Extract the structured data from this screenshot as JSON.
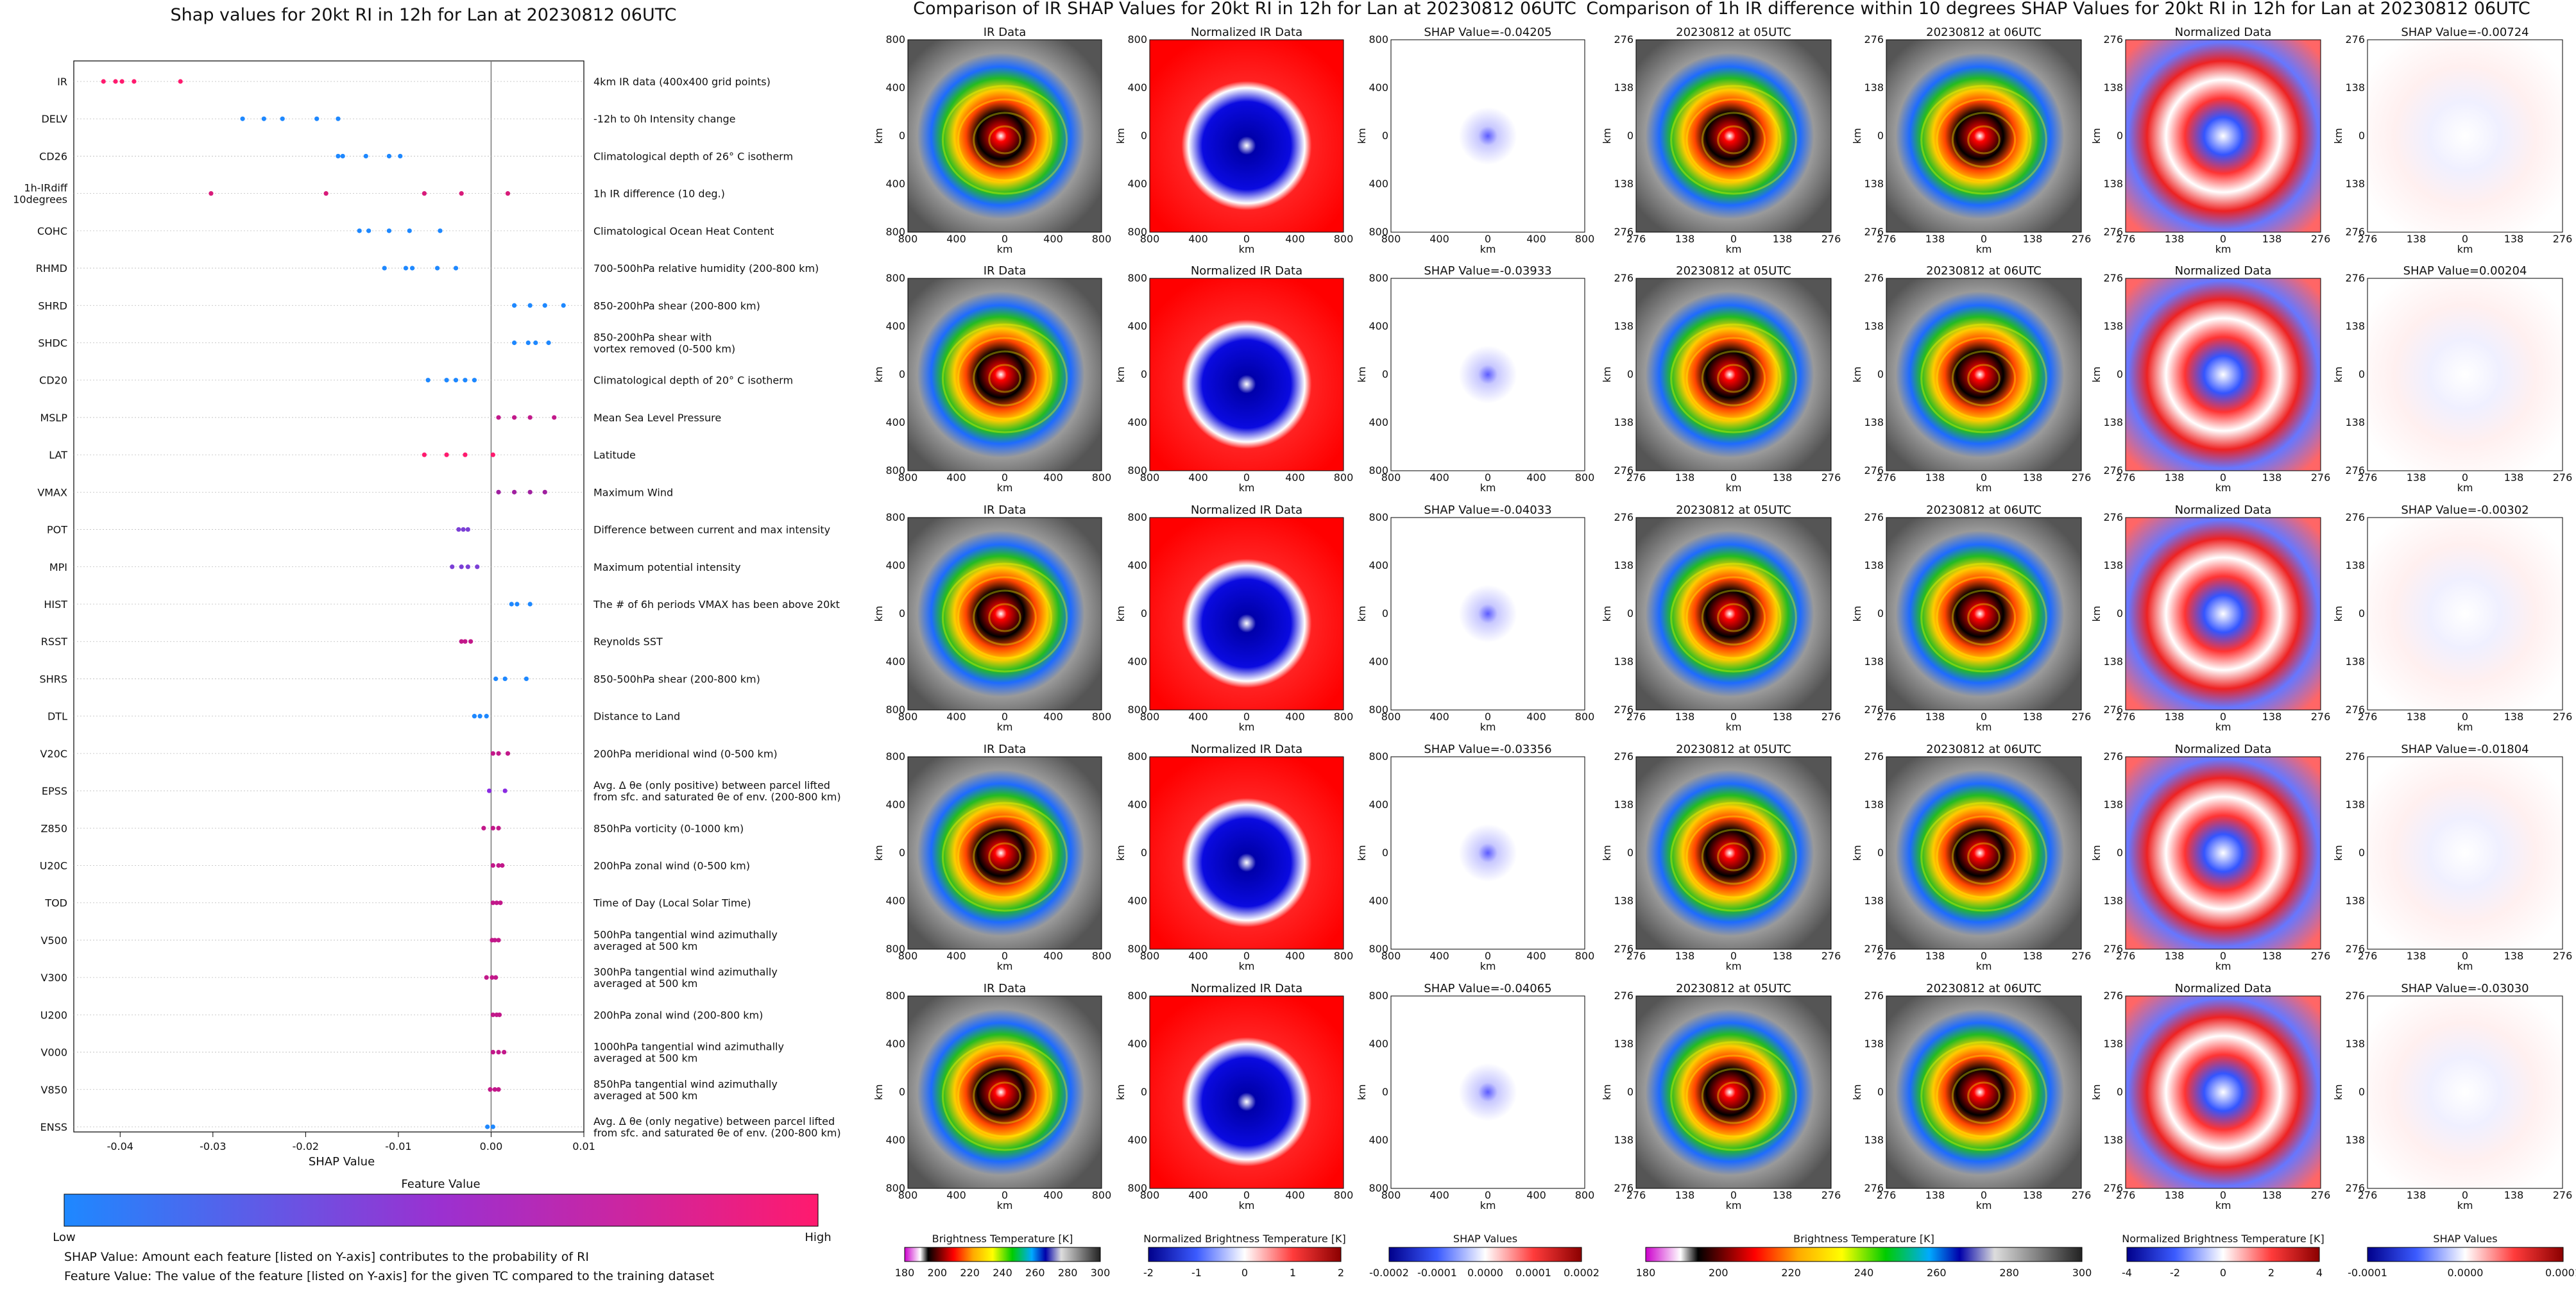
{
  "left_title": "Shap values for 20kt RI in 12h for Lan at 20230812 06UTC",
  "middle_title": "Comparison of IR SHAP Values for 20kt RI in 12h for Lan at 20230812 06UTC",
  "right_title": "Comparison of 1h IR difference within 10 degrees SHAP Values for 20kt RI in 12h for Lan at 20230812 06UTC",
  "colorbar": {
    "title": "Feature Value",
    "low": "Low",
    "high": "High"
  },
  "notes": [
    "SHAP Value: Amount each feature [listed on Y-axis] contributes to the probability of RI",
    "Feature Value: The value of the feature [listed on Y-axis] for the given TC compared to the training dataset"
  ],
  "colors": {
    "low": "#1e88ff",
    "high": "#ff1a6e",
    "mid": "#8a2be2"
  },
  "chart_data": [
    {
      "type": "scatter",
      "title": "Shap values for 20kt RI in 12h for Lan at 20230812 06UTC",
      "xlabel": "SHAP Value",
      "ylabel": "",
      "xlim": [
        -0.045,
        0.01
      ],
      "xticks": [
        "-0.04",
        "-0.03",
        "-0.02",
        "-0.01",
        "0.00",
        "0.01"
      ],
      "grid": false,
      "features": [
        {
          "name": "IR",
          "desc": "4km IR data (400x400 grid points)",
          "points": [
            -0.0418,
            -0.0405,
            -0.0398,
            -0.0385,
            -0.0335
          ],
          "color": "#ff1a6e"
        },
        {
          "name": "DELV",
          "desc": "-12h to 0h Intensity change",
          "points": [
            -0.0268,
            -0.0245,
            -0.0225,
            -0.0188,
            -0.0165
          ],
          "color": "#1e88ff"
        },
        {
          "name": "CD26",
          "desc": "Climatological depth of 26° C isotherm",
          "points": [
            -0.0165,
            -0.016,
            -0.0135,
            -0.011,
            -0.0098
          ],
          "color": "#1e88ff"
        },
        {
          "name": "1h-IRdiff\n10degrees",
          "desc": "1h IR difference (10 deg.)",
          "points": [
            -0.0302,
            -0.0178,
            -0.0072,
            -0.0032,
            0.0018
          ],
          "color": "#d81b7a"
        },
        {
          "name": "COHC",
          "desc": "Climatological Ocean Heat Content",
          "points": [
            -0.0142,
            -0.0132,
            -0.011,
            -0.0088,
            -0.0055
          ],
          "color": "#1e88ff"
        },
        {
          "name": "RHMD",
          "desc": "700-500hPa relative humidity (200-800 km)",
          "points": [
            -0.0115,
            -0.0092,
            -0.0085,
            -0.0058,
            -0.0038
          ],
          "color": "#1e88ff"
        },
        {
          "name": "SHRD",
          "desc": "850-200hPa shear (200-800 km)",
          "points": [
            0.0025,
            0.0042,
            0.0058,
            0.0078
          ],
          "color": "#1e88ff"
        },
        {
          "name": "SHDC",
          "desc": "850-200hPa shear with\nvortex removed (0-500 km)",
          "points": [
            0.0025,
            0.004,
            0.0048,
            0.0062
          ],
          "color": "#1e88ff"
        },
        {
          "name": "CD20",
          "desc": "Climatological depth of 20° C isotherm",
          "points": [
            -0.0068,
            -0.0048,
            -0.0038,
            -0.0028,
            -0.0018
          ],
          "color": "#1e88ff"
        },
        {
          "name": "MSLP",
          "desc": "Mean Sea Level Pressure",
          "points": [
            0.0008,
            0.0025,
            0.0042,
            0.0068
          ],
          "color": "#c2188a"
        },
        {
          "name": "LAT",
          "desc": "Latitude",
          "points": [
            -0.0072,
            -0.0048,
            -0.0028,
            0.0002
          ],
          "color": "#ff1a6e"
        },
        {
          "name": "VMAX",
          "desc": "Maximum Wind",
          "points": [
            0.0008,
            0.0025,
            0.0042,
            0.0058
          ],
          "color": "#a020a0"
        },
        {
          "name": "POT",
          "desc": "Difference between current and max intensity",
          "points": [
            -0.0035,
            -0.003,
            -0.0025
          ],
          "color": "#7b3fd6"
        },
        {
          "name": "MPI",
          "desc": "Maximum potential intensity",
          "points": [
            -0.0042,
            -0.0032,
            -0.0025,
            -0.0015
          ],
          "color": "#7b3fd6"
        },
        {
          "name": "HIST",
          "desc": "The # of 6h periods VMAX has been above 20kt",
          "points": [
            0.0022,
            0.0028,
            0.0042
          ],
          "color": "#1e88ff"
        },
        {
          "name": "RSST",
          "desc": "Reynolds SST",
          "points": [
            -0.0032,
            -0.0028,
            -0.0022
          ],
          "color": "#c2188a"
        },
        {
          "name": "SHRS",
          "desc": "850-500hPa shear (200-800 km)",
          "points": [
            0.0005,
            0.0015,
            0.0038
          ],
          "color": "#1e88ff"
        },
        {
          "name": "DTL",
          "desc": "Distance to Land",
          "points": [
            -0.0018,
            -0.0012,
            -0.0005
          ],
          "color": "#1e88ff"
        },
        {
          "name": "V20C",
          "desc": "200hPa meridional wind (0-500 km)",
          "points": [
            0.0002,
            0.0008,
            0.0018
          ],
          "color": "#c2188a"
        },
        {
          "name": "EPSS",
          "desc": "Avg. Δ θe (only positive) between parcel lifted\nfrom sfc. and saturated θe of env. (200-800 km)",
          "points": [
            -0.0002,
            0.0015
          ],
          "color": "#8a2be2"
        },
        {
          "name": "Z850",
          "desc": "850hPa vorticity (0-1000 km)",
          "points": [
            -0.0008,
            0.0002,
            0.0008
          ],
          "color": "#c2188a"
        },
        {
          "name": "U20C",
          "desc": "200hPa zonal wind (0-500 km)",
          "points": [
            0.0002,
            0.0008,
            0.0012
          ],
          "color": "#c2188a"
        },
        {
          "name": "TOD",
          "desc": "Time of Day (Local Solar Time)",
          "points": [
            0.0002,
            0.0006,
            0.001
          ],
          "color": "#c2188a"
        },
        {
          "name": "V500",
          "desc": "500hPa tangential wind azimuthally\naveraged at 500 km",
          "points": [
            0.0001,
            0.0004,
            0.0008
          ],
          "color": "#c2188a"
        },
        {
          "name": "V300",
          "desc": "300hPa tangential wind azimuthally\naveraged at 500 km",
          "points": [
            -0.0005,
            0.0001,
            0.0005
          ],
          "color": "#c2188a"
        },
        {
          "name": "U200",
          "desc": "200hPa zonal wind (200-800 km)",
          "points": [
            0.0002,
            0.0006,
            0.0009
          ],
          "color": "#c2188a"
        },
        {
          "name": "V000",
          "desc": "1000hPa tangential wind azimuthally\naveraged at 500 km",
          "points": [
            0.0002,
            0.0008,
            0.0014
          ],
          "color": "#c2188a"
        },
        {
          "name": "V850",
          "desc": "850hPa tangential wind azimuthally\naveraged at 500 km",
          "points": [
            -0.0001,
            0.0004,
            0.0008
          ],
          "color": "#c2188a"
        },
        {
          "name": "ENSS",
          "desc": "Avg. Δ θe (only negative) between parcel lifted\nfrom sfc. and saturated θe of env. (200-800 km)",
          "points": [
            -0.0004,
            0.0002
          ],
          "color": "#1e88ff"
        }
      ]
    },
    {
      "type": "heatmap",
      "title": "Comparison of IR SHAP Values for 20kt RI in 12h for Lan at 20230812 06UTC",
      "columns": [
        "IR Data",
        "Normalized IR Data"
      ],
      "shap_titles": [
        "SHAP Value=-0.04205",
        "SHAP Value=-0.03933",
        "SHAP Value=-0.04033",
        "SHAP Value=-0.03356",
        "SHAP Value=-0.04065"
      ],
      "shap_values": [
        -0.04205,
        -0.03933,
        -0.04033,
        -0.03356,
        -0.04065
      ],
      "xlabel": "km",
      "ylabel": "km",
      "ticks": [
        "800",
        "400",
        "0",
        "400",
        "800"
      ],
      "colorbars": [
        {
          "label": "Brightness Temperature [K]",
          "ticks": [
            "180",
            "200",
            "220",
            "240",
            "260",
            "280",
            "300"
          ]
        },
        {
          "label": "Normalized Brightness Temperature [K]",
          "ticks": [
            "-2",
            "-1",
            "0",
            "1",
            "2"
          ]
        },
        {
          "label": "SHAP Values",
          "ticks": [
            "-0.0002",
            "-0.0001",
            "0.0000",
            "0.0001",
            "0.0002"
          ]
        }
      ]
    },
    {
      "type": "heatmap",
      "title": "Comparison of 1h IR difference within 10 degrees SHAP Values for 20kt RI in 12h for Lan at 20230812 06UTC",
      "columns": [
        "20230812 at 05UTC",
        "20230812 at 06UTC",
        "Normalized Data"
      ],
      "shap_titles": [
        "SHAP Value=-0.00724",
        "SHAP Value=0.00204",
        "SHAP Value=-0.00302",
        "SHAP Value=-0.01804",
        "SHAP Value=-0.03030"
      ],
      "shap_values": [
        -0.00724,
        0.00204,
        -0.00302,
        -0.01804,
        -0.0303
      ],
      "xlabel": "km",
      "ylabel": "km",
      "ticks": [
        "276",
        "138",
        "0",
        "138",
        "276"
      ],
      "colorbars": [
        {
          "label": "Brightness Temperature [K]",
          "ticks": [
            "180",
            "200",
            "220",
            "240",
            "260",
            "280",
            "300"
          ]
        },
        {
          "label": "Normalized Brightness Temperature [K]",
          "ticks": [
            "-4",
            "-2",
            "0",
            "2",
            "4"
          ]
        },
        {
          "label": "SHAP Values",
          "ticks": [
            "-0.0001",
            "0.0000",
            "0.0001"
          ]
        }
      ]
    }
  ]
}
